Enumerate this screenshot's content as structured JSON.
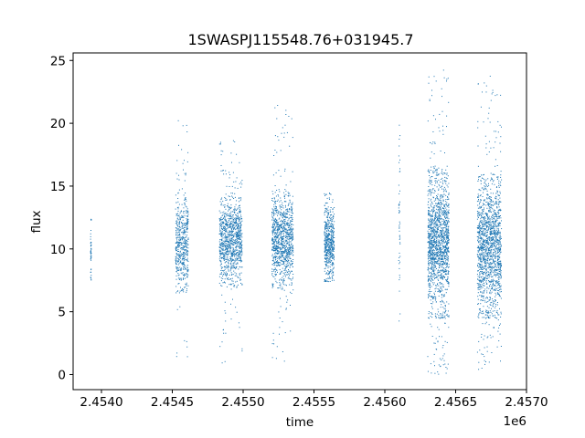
{
  "chart_data": {
    "type": "scatter",
    "title": "1SWASPJ115548.76+031945.7",
    "xlabel": "time",
    "ylabel": "flux",
    "x_offset_label": "1e6",
    "xlim": [
      2453800,
      2457000
    ],
    "ylim": [
      -1.2,
      25.6
    ],
    "x_ticks": [
      2454000,
      2454500,
      2455000,
      2455500,
      2456000,
      2456500,
      2457000
    ],
    "x_tick_labels": [
      "2.4540",
      "2.4545",
      "2.4550",
      "2.4555",
      "2.4560",
      "2.4565",
      "2.4570"
    ],
    "y_ticks": [
      0,
      5,
      10,
      15,
      20,
      25
    ],
    "y_tick_labels": [
      "0",
      "5",
      "10",
      "15",
      "20",
      "25"
    ],
    "grid": false,
    "legend": "none",
    "marker_color": "#1f77b4",
    "clusters": [
      {
        "x_start": 2453920,
        "x_end": 2453925,
        "core_low": 7.8,
        "core_high": 12.3,
        "scatter_low": 7.5,
        "scatter_high": 12.5,
        "density": "sparse"
      },
      {
        "x_start": 2454520,
        "x_end": 2454610,
        "core_low": 6.5,
        "core_high": 14.5,
        "scatter_low": 1.4,
        "scatter_high": 20.5,
        "density": "medium"
      },
      {
        "x_start": 2454830,
        "x_end": 2454990,
        "core_low": 7.0,
        "core_high": 14.5,
        "scatter_low": 0.4,
        "scatter_high": 18.8,
        "density": "dense"
      },
      {
        "x_start": 2455200,
        "x_end": 2455350,
        "core_low": 6.8,
        "core_high": 14.8,
        "scatter_low": 1.0,
        "scatter_high": 21.7,
        "density": "dense"
      },
      {
        "x_start": 2455570,
        "x_end": 2455640,
        "core_low": 7.6,
        "core_high": 13.5,
        "scatter_low": 7.4,
        "scatter_high": 14.5,
        "density": "medium"
      },
      {
        "x_start": 2456095,
        "x_end": 2456105,
        "core_low": 6.0,
        "core_high": 17.0,
        "scatter_low": 2.5,
        "scatter_high": 20.5,
        "density": "sparse"
      },
      {
        "x_start": 2456300,
        "x_end": 2456450,
        "core_low": 4.5,
        "core_high": 16.5,
        "scatter_low": 0.0,
        "scatter_high": 24.3,
        "density": "very-dense"
      },
      {
        "x_start": 2456650,
        "x_end": 2456820,
        "core_low": 4.5,
        "core_high": 16.0,
        "scatter_low": 0.2,
        "scatter_high": 23.8,
        "density": "very-dense"
      }
    ]
  }
}
